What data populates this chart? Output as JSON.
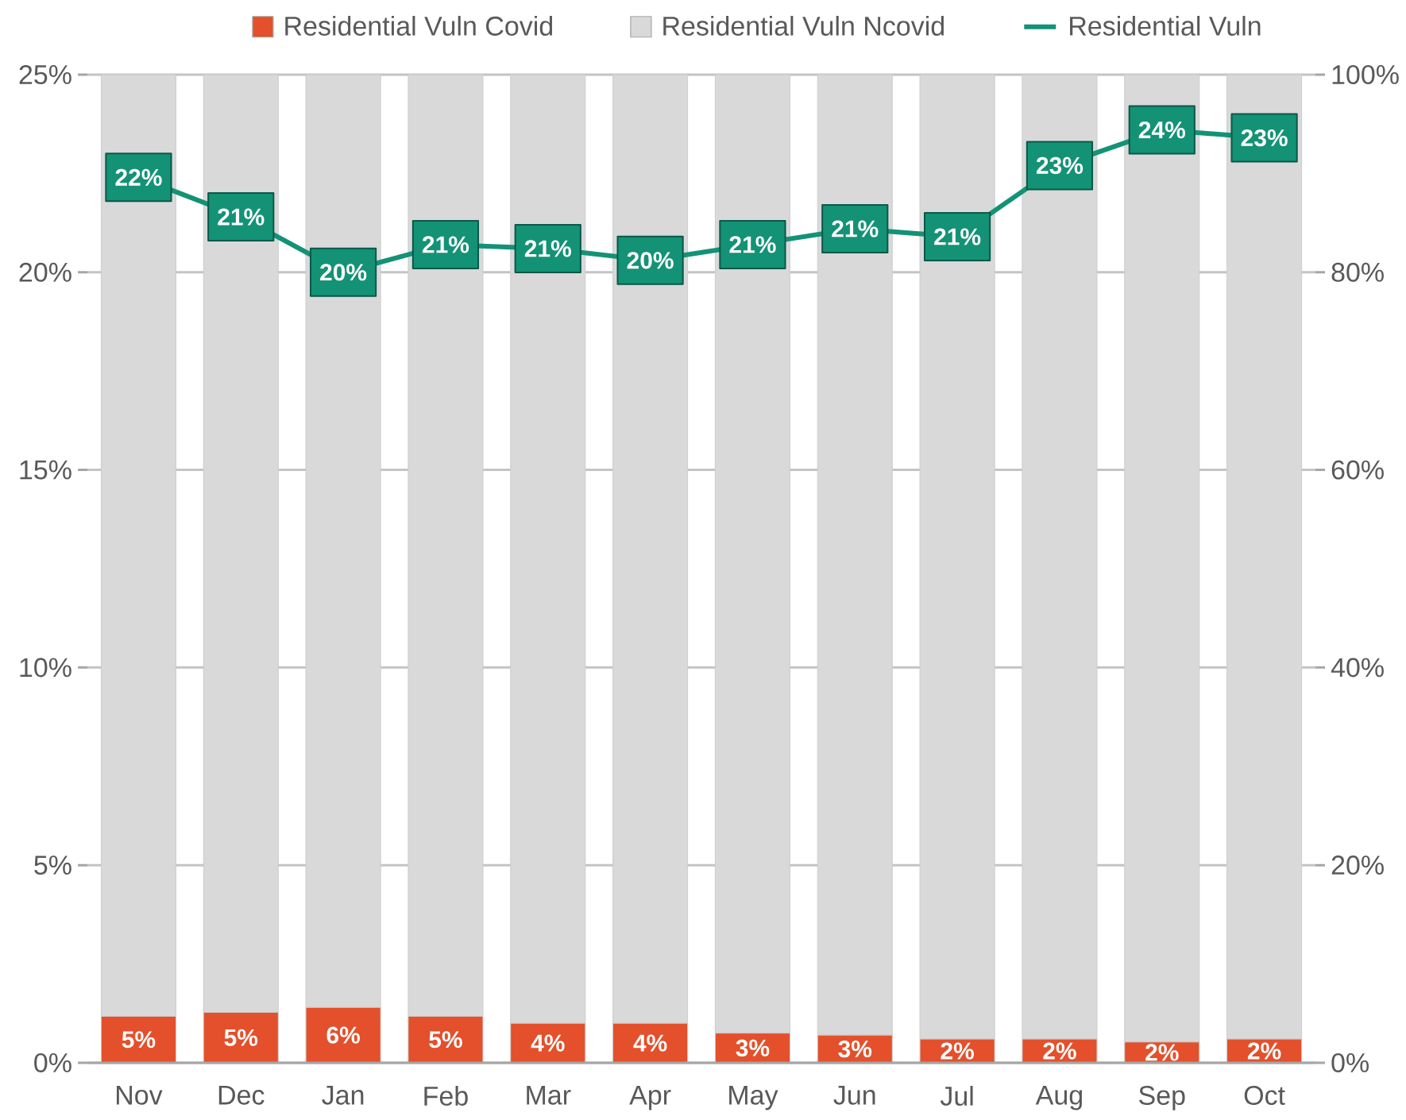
{
  "chart_data": {
    "type": "bar",
    "stacked": true,
    "categories": [
      "Nov",
      "Dec",
      "Jan",
      "Feb",
      "Mar",
      "Apr",
      "May",
      "Jun",
      "Jul",
      "Aug",
      "Sep",
      "Oct"
    ],
    "series": [
      {
        "name": "Residential Vuln Covid",
        "color": "#e3502b",
        "axis": "y2",
        "values": [
          4.7,
          5.1,
          5.6,
          4.7,
          4.0,
          4.0,
          3.0,
          2.8,
          2.4,
          2.4,
          2.1,
          2.4
        ],
        "value_labels": [
          "5%",
          "5%",
          "6%",
          "5%",
          "4%",
          "4%",
          "3%",
          "3%",
          "2%",
          "2%",
          "2%",
          "2%"
        ]
      },
      {
        "name": "Residential Vuln Ncovid",
        "color": "#d9d9d9",
        "axis": "y2",
        "values": [
          95.3,
          94.9,
          94.4,
          95.3,
          96.0,
          96.0,
          97.0,
          97.2,
          97.6,
          97.6,
          97.9,
          97.6
        ]
      },
      {
        "name": "Residential Vuln",
        "type": "line",
        "color": "#139276",
        "marker": "square",
        "values": [
          22.4,
          21.4,
          20.0,
          20.7,
          20.6,
          20.3,
          20.7,
          21.1,
          20.9,
          22.7,
          23.6,
          23.4
        ],
        "value_labels": [
          "22%",
          "21%",
          "20%",
          "21%",
          "21%",
          "20%",
          "21%",
          "21%",
          "21%",
          "23%",
          "24%",
          "23%"
        ]
      }
    ],
    "ylim": [
      0,
      25
    ],
    "yticks": [
      {
        "value": 0,
        "label": "0%"
      },
      {
        "value": 5,
        "label": "5%"
      },
      {
        "value": 10,
        "label": "10%"
      },
      {
        "value": 15,
        "label": "15%"
      },
      {
        "value": 20,
        "label": "20%"
      },
      {
        "value": 25,
        "label": "25%"
      }
    ],
    "y2lim": [
      0,
      100
    ],
    "y2ticks": [
      {
        "value": 0,
        "label": "0%"
      },
      {
        "value": 20,
        "label": "20%"
      },
      {
        "value": 40,
        "label": "40%"
      },
      {
        "value": 60,
        "label": "60%"
      },
      {
        "value": 80,
        "label": "80%"
      },
      {
        "value": 100,
        "label": "100%"
      }
    ],
    "grid": "y",
    "legend": "top"
  }
}
